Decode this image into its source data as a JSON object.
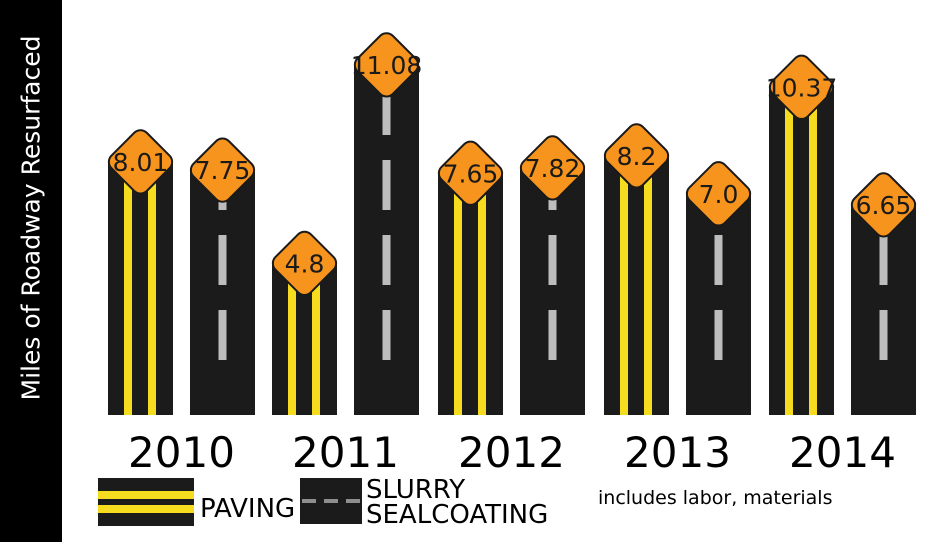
{
  "ylabel": "Miles of Roadway Resurfaced",
  "colors": {
    "asphalt": "#1b1b1b",
    "paving_line": "#f6dc1e",
    "slurry_dash": "#bdbdbd",
    "badge": "#f7941d"
  },
  "legend": {
    "paving": "PAVING",
    "slurry": "SLURRY\nSEALCOATING",
    "paving_icon": "double-yellow-line-road-icon",
    "slurry_icon": "dashed-white-line-road-icon"
  },
  "footnote": "includes labor, materials",
  "chart_data": {
    "type": "bar",
    "categories": [
      "2010",
      "2011",
      "2012",
      "2013",
      "2014"
    ],
    "ylabel": "Miles of Roadway Resurfaced",
    "ylim": [
      0,
      12
    ],
    "series": [
      {
        "name": "PAVING",
        "values": [
          8.01,
          4.8,
          7.65,
          8.2,
          10.37
        ],
        "labels": [
          "8.01",
          "4.8",
          "7.65",
          "8.2",
          "10.37"
        ]
      },
      {
        "name": "SLURRY SEALCOATING",
        "values": [
          7.75,
          11.08,
          7.82,
          7.0,
          6.65
        ],
        "labels": [
          "7.75",
          "11.08",
          "7.82",
          "7.0",
          "6.65"
        ]
      }
    ],
    "grid": false,
    "legend_position": "bottom"
  }
}
